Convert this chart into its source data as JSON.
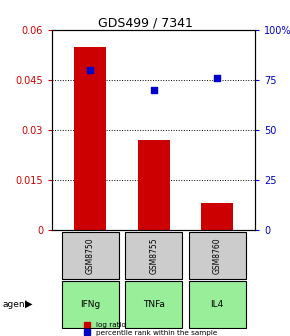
{
  "title": "GDS499 / 7341",
  "categories": [
    "IFNg",
    "TNFa",
    "IL4"
  ],
  "sample_ids": [
    "GSM8750",
    "GSM8755",
    "GSM8760"
  ],
  "log_ratios": [
    0.055,
    0.027,
    0.008
  ],
  "percentile_ranks": [
    80.0,
    70.0,
    76.0
  ],
  "left_ylim": [
    0,
    0.06
  ],
  "right_ylim": [
    0,
    100
  ],
  "left_yticks": [
    0,
    0.015,
    0.03,
    0.045,
    0.06
  ],
  "left_yticklabels": [
    "0",
    "0.015",
    "0.03",
    "0.045",
    "0.06"
  ],
  "right_yticks": [
    0,
    25,
    50,
    75,
    100
  ],
  "right_yticklabels": [
    "0",
    "25",
    "50",
    "75",
    "100%"
  ],
  "bar_color": "#cc0000",
  "scatter_color": "#0000cc",
  "agent_bg_color": "#99ee99",
  "sample_bg_color": "#cccccc",
  "bar_width": 0.5,
  "legend_bar_label": "log ratio",
  "legend_scatter_label": "percentile rank within the sample"
}
